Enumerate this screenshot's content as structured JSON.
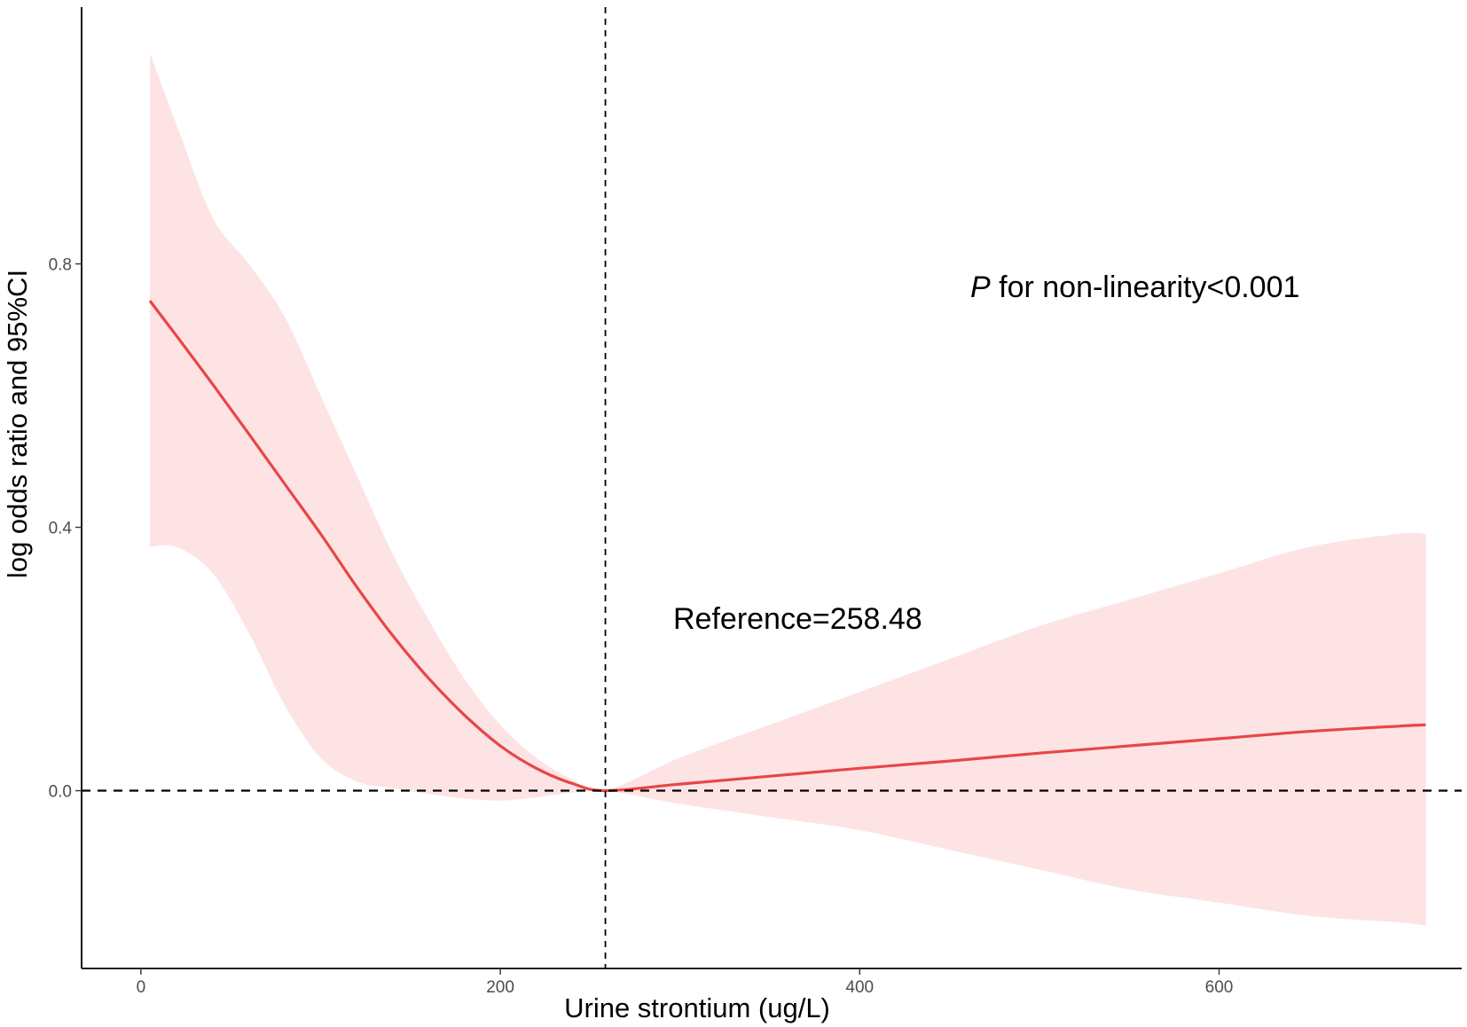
{
  "chart_data": {
    "type": "line",
    "xlabel": "Urine strontium (ug/L)",
    "ylabel": "log odds ratio and 95%CI",
    "xlim": [
      -33,
      735
    ],
    "ylim": [
      -0.27,
      1.19
    ],
    "x_ticks": [
      0,
      200,
      400,
      600
    ],
    "x_tick_labels": [
      "0",
      "200",
      "400",
      "600"
    ],
    "y_ticks": [
      0.0,
      0.4,
      0.8
    ],
    "y_tick_labels": [
      "0.0",
      "0.4",
      "0.8"
    ],
    "grid": false,
    "reference_x": 258.48,
    "reference_y": 0.0,
    "annotations": {
      "reference": "Reference=258.48",
      "p_prefix": "P",
      "p_text": " for non-linearity<0.001"
    },
    "series": [
      {
        "role": "estimate",
        "color": "#e84646",
        "x": [
          5,
          20,
          40,
          60,
          80,
          100,
          120,
          140,
          160,
          180,
          200,
          220,
          240,
          258.48,
          300,
          350,
          400,
          450,
          500,
          550,
          600,
          650,
          700,
          715
        ],
        "y": [
          0.744,
          0.69,
          0.617,
          0.542,
          0.466,
          0.39,
          0.31,
          0.236,
          0.171,
          0.115,
          0.068,
          0.034,
          0.011,
          0.0,
          0.01,
          0.022,
          0.034,
          0.045,
          0.057,
          0.068,
          0.079,
          0.09,
          0.098,
          0.1
        ]
      },
      {
        "role": "ci_upper",
        "color": "#fde3e4",
        "x": [
          5,
          20,
          40,
          60,
          80,
          100,
          120,
          140,
          160,
          180,
          200,
          220,
          240,
          258.48,
          300,
          350,
          400,
          450,
          500,
          550,
          600,
          650,
          700,
          715
        ],
        "y": [
          1.12,
          1.01,
          0.87,
          0.8,
          0.72,
          0.6,
          0.48,
          0.36,
          0.26,
          0.17,
          0.1,
          0.05,
          0.017,
          0.0,
          0.05,
          0.1,
          0.15,
          0.2,
          0.25,
          0.29,
          0.33,
          0.37,
          0.39,
          0.39
        ]
      },
      {
        "role": "ci_lower",
        "color": "#fde3e4",
        "x": [
          5,
          20,
          40,
          60,
          80,
          100,
          120,
          140,
          160,
          180,
          200,
          220,
          240,
          258.48,
          300,
          350,
          400,
          450,
          500,
          550,
          600,
          650,
          700,
          715
        ],
        "y": [
          0.37,
          0.37,
          0.33,
          0.24,
          0.13,
          0.05,
          0.014,
          0.004,
          -0.005,
          -0.012,
          -0.015,
          -0.01,
          -0.003,
          0.0,
          -0.02,
          -0.04,
          -0.06,
          -0.09,
          -0.12,
          -0.15,
          -0.17,
          -0.19,
          -0.2,
          -0.205
        ]
      }
    ]
  }
}
